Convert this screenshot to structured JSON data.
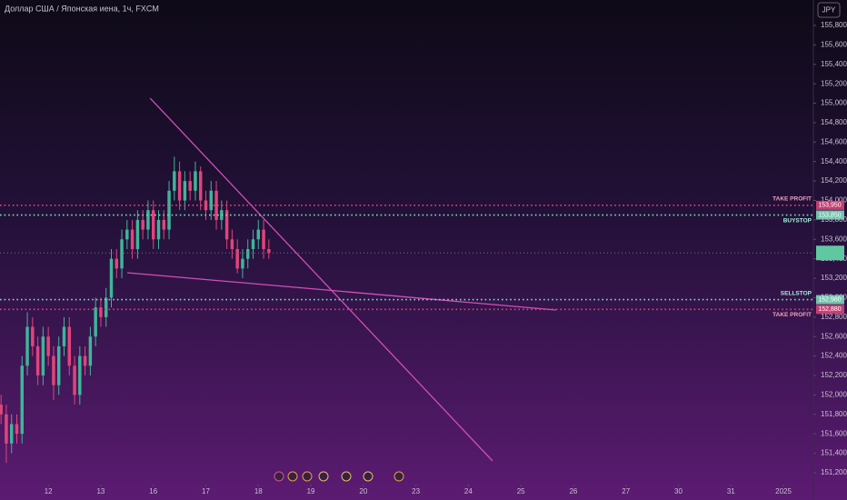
{
  "chart_data": {
    "type": "candlestick",
    "title": "Доллар США / Японская иена, 1ч, FXCM",
    "currency": "JPY",
    "x": [
      -0.9,
      -0.8,
      -0.7,
      -0.6,
      -0.5,
      -0.4,
      -0.3,
      -0.2,
      -0.1,
      0,
      0.1,
      0.2,
      0.3,
      0.4,
      0.5,
      0.6,
      0.7,
      0.8,
      0.9,
      1,
      1.1,
      1.2,
      1.3,
      1.4,
      1.5,
      1.6,
      1.7,
      1.8,
      1.9,
      2,
      2.1,
      2.2,
      2.3,
      2.4,
      2.5,
      2.6,
      2.7,
      2.8,
      2.9,
      3,
      3.1,
      3.2,
      3.3,
      3.4,
      3.5,
      3.6,
      3.7,
      3.8,
      3.9,
      4,
      4.1,
      4.2
    ],
    "open": [
      151900,
      151800,
      151500,
      151700,
      151600,
      152300,
      152700,
      152500,
      152200,
      152600,
      152400,
      152100,
      152500,
      152700,
      152300,
      152000,
      152400,
      152300,
      152600,
      152900,
      152800,
      153000,
      153400,
      153300,
      153600,
      153700,
      153500,
      153800,
      153700,
      153900,
      153600,
      153800,
      153700,
      154100,
      154300,
      154000,
      154200,
      154100,
      154300,
      154000,
      153900,
      154100,
      153800,
      153900,
      153600,
      153500,
      153300,
      153400,
      153500,
      153600,
      153700,
      153500
    ],
    "high": [
      152000,
      151900,
      151800,
      151800,
      152400,
      152850,
      152800,
      152600,
      152700,
      152700,
      152500,
      152600,
      152800,
      152800,
      152400,
      152500,
      152500,
      152700,
      153000,
      153000,
      153100,
      153500,
      153500,
      153700,
      153800,
      153800,
      153900,
      153900,
      154000,
      154000,
      153900,
      153900,
      154200,
      154450,
      154400,
      154300,
      154300,
      154400,
      154350,
      154100,
      154200,
      154200,
      154000,
      154000,
      153700,
      153600,
      153500,
      153600,
      153700,
      153800,
      153800,
      153600
    ],
    "low": [
      151700,
      151300,
      151400,
      151500,
      151500,
      152200,
      152400,
      152100,
      152100,
      152300,
      151950,
      152000,
      152400,
      152200,
      151900,
      151900,
      152200,
      152200,
      152500,
      152700,
      152700,
      152900,
      153200,
      153200,
      153500,
      153400,
      153400,
      153600,
      153600,
      153500,
      153500,
      153600,
      153600,
      154000,
      153900,
      153900,
      154000,
      154000,
      153900,
      153800,
      153800,
      153700,
      153700,
      153500,
      153400,
      153250,
      153200,
      153300,
      153400,
      153500,
      153400,
      153400
    ],
    "close": [
      151800,
      151500,
      151700,
      151600,
      152300,
      152700,
      152500,
      152200,
      152600,
      152400,
      152100,
      152500,
      152700,
      152300,
      152000,
      152400,
      152300,
      152600,
      152900,
      152800,
      153000,
      153400,
      153300,
      153600,
      153700,
      153500,
      153800,
      153700,
      153900,
      153600,
      153800,
      153700,
      154100,
      154300,
      154000,
      154200,
      154100,
      154300,
      154000,
      153900,
      154100,
      153800,
      153900,
      153600,
      153500,
      153300,
      153400,
      153500,
      153600,
      153700,
      153500,
      153460
    ],
    "up_color": "#3fb59a",
    "down_color": "#e0457a",
    "xlim": [
      -0.92,
      14.57
    ],
    "xticks": [
      {
        "value": 0,
        "label": "12"
      },
      {
        "value": 1,
        "label": "13"
      },
      {
        "value": 2,
        "label": "16"
      },
      {
        "value": 3,
        "label": "17"
      },
      {
        "value": 4,
        "label": "18"
      },
      {
        "value": 5,
        "label": "19"
      },
      {
        "value": 6,
        "label": "20"
      },
      {
        "value": 7,
        "label": "23"
      },
      {
        "value": 8,
        "label": "24"
      },
      {
        "value": 9,
        "label": "25"
      },
      {
        "value": 10,
        "label": "26"
      },
      {
        "value": 11,
        "label": "27"
      },
      {
        "value": 12,
        "label": "30"
      },
      {
        "value": 13,
        "label": "31"
      },
      {
        "value": 14,
        "label": "2025"
      }
    ],
    "ylim": [
      151106,
      156062
    ],
    "yticks": [
      {
        "value": 155800,
        "label": "155,800"
      },
      {
        "value": 155600,
        "label": "155,600"
      },
      {
        "value": 155400,
        "label": "155,400"
      },
      {
        "value": 155200,
        "label": "155,200"
      },
      {
        "value": 155000,
        "label": "155,000"
      },
      {
        "value": 154800,
        "label": "154,800"
      },
      {
        "value": 154600,
        "label": "154,600"
      },
      {
        "value": 154400,
        "label": "154,400"
      },
      {
        "value": 154200,
        "label": "154,200"
      },
      {
        "value": 154000,
        "label": "154,000"
      },
      {
        "value": 153800,
        "label": "153,800"
      },
      {
        "value": 153600,
        "label": "153,600"
      },
      {
        "value": 153400,
        "label": "153,400"
      },
      {
        "value": 153200,
        "label": "153,200"
      },
      {
        "value": 153000,
        "label": "153,000"
      },
      {
        "value": 152800,
        "label": "152,800"
      },
      {
        "value": 152600,
        "label": "152,600"
      },
      {
        "value": 152400,
        "label": "152,400"
      },
      {
        "value": 152200,
        "label": "152,200"
      },
      {
        "value": 152000,
        "label": "152,000"
      },
      {
        "value": 151800,
        "label": "151,800"
      },
      {
        "value": 151600,
        "label": "151,600"
      },
      {
        "value": 151400,
        "label": "151,400"
      },
      {
        "value": 151200,
        "label": "151,200"
      }
    ],
    "levels": [
      {
        "name": "TAKE PROFIT",
        "value": 153950,
        "label": "153,950",
        "color": "#e0457a"
      },
      {
        "name": "BUYSTOP",
        "value": 153850,
        "label": "153,850",
        "color": "#7fe0c0"
      },
      {
        "name": "SELLSTOP",
        "value": 152980,
        "label": "152,980",
        "color": "#7fe0c0"
      },
      {
        "name": "TAKE PROFIT",
        "value": 152880,
        "label": "152,880",
        "color": "#e0457a"
      }
    ],
    "trendlines": [
      {
        "x": [
          1.94,
          8.46
        ],
        "y": [
          155052,
          151321
        ],
        "color": "#d04fb8"
      },
      {
        "x": [
          1.505,
          9.67
        ],
        "y": [
          153257,
          152873
        ],
        "color": "#d04fb8"
      }
    ]
  }
}
